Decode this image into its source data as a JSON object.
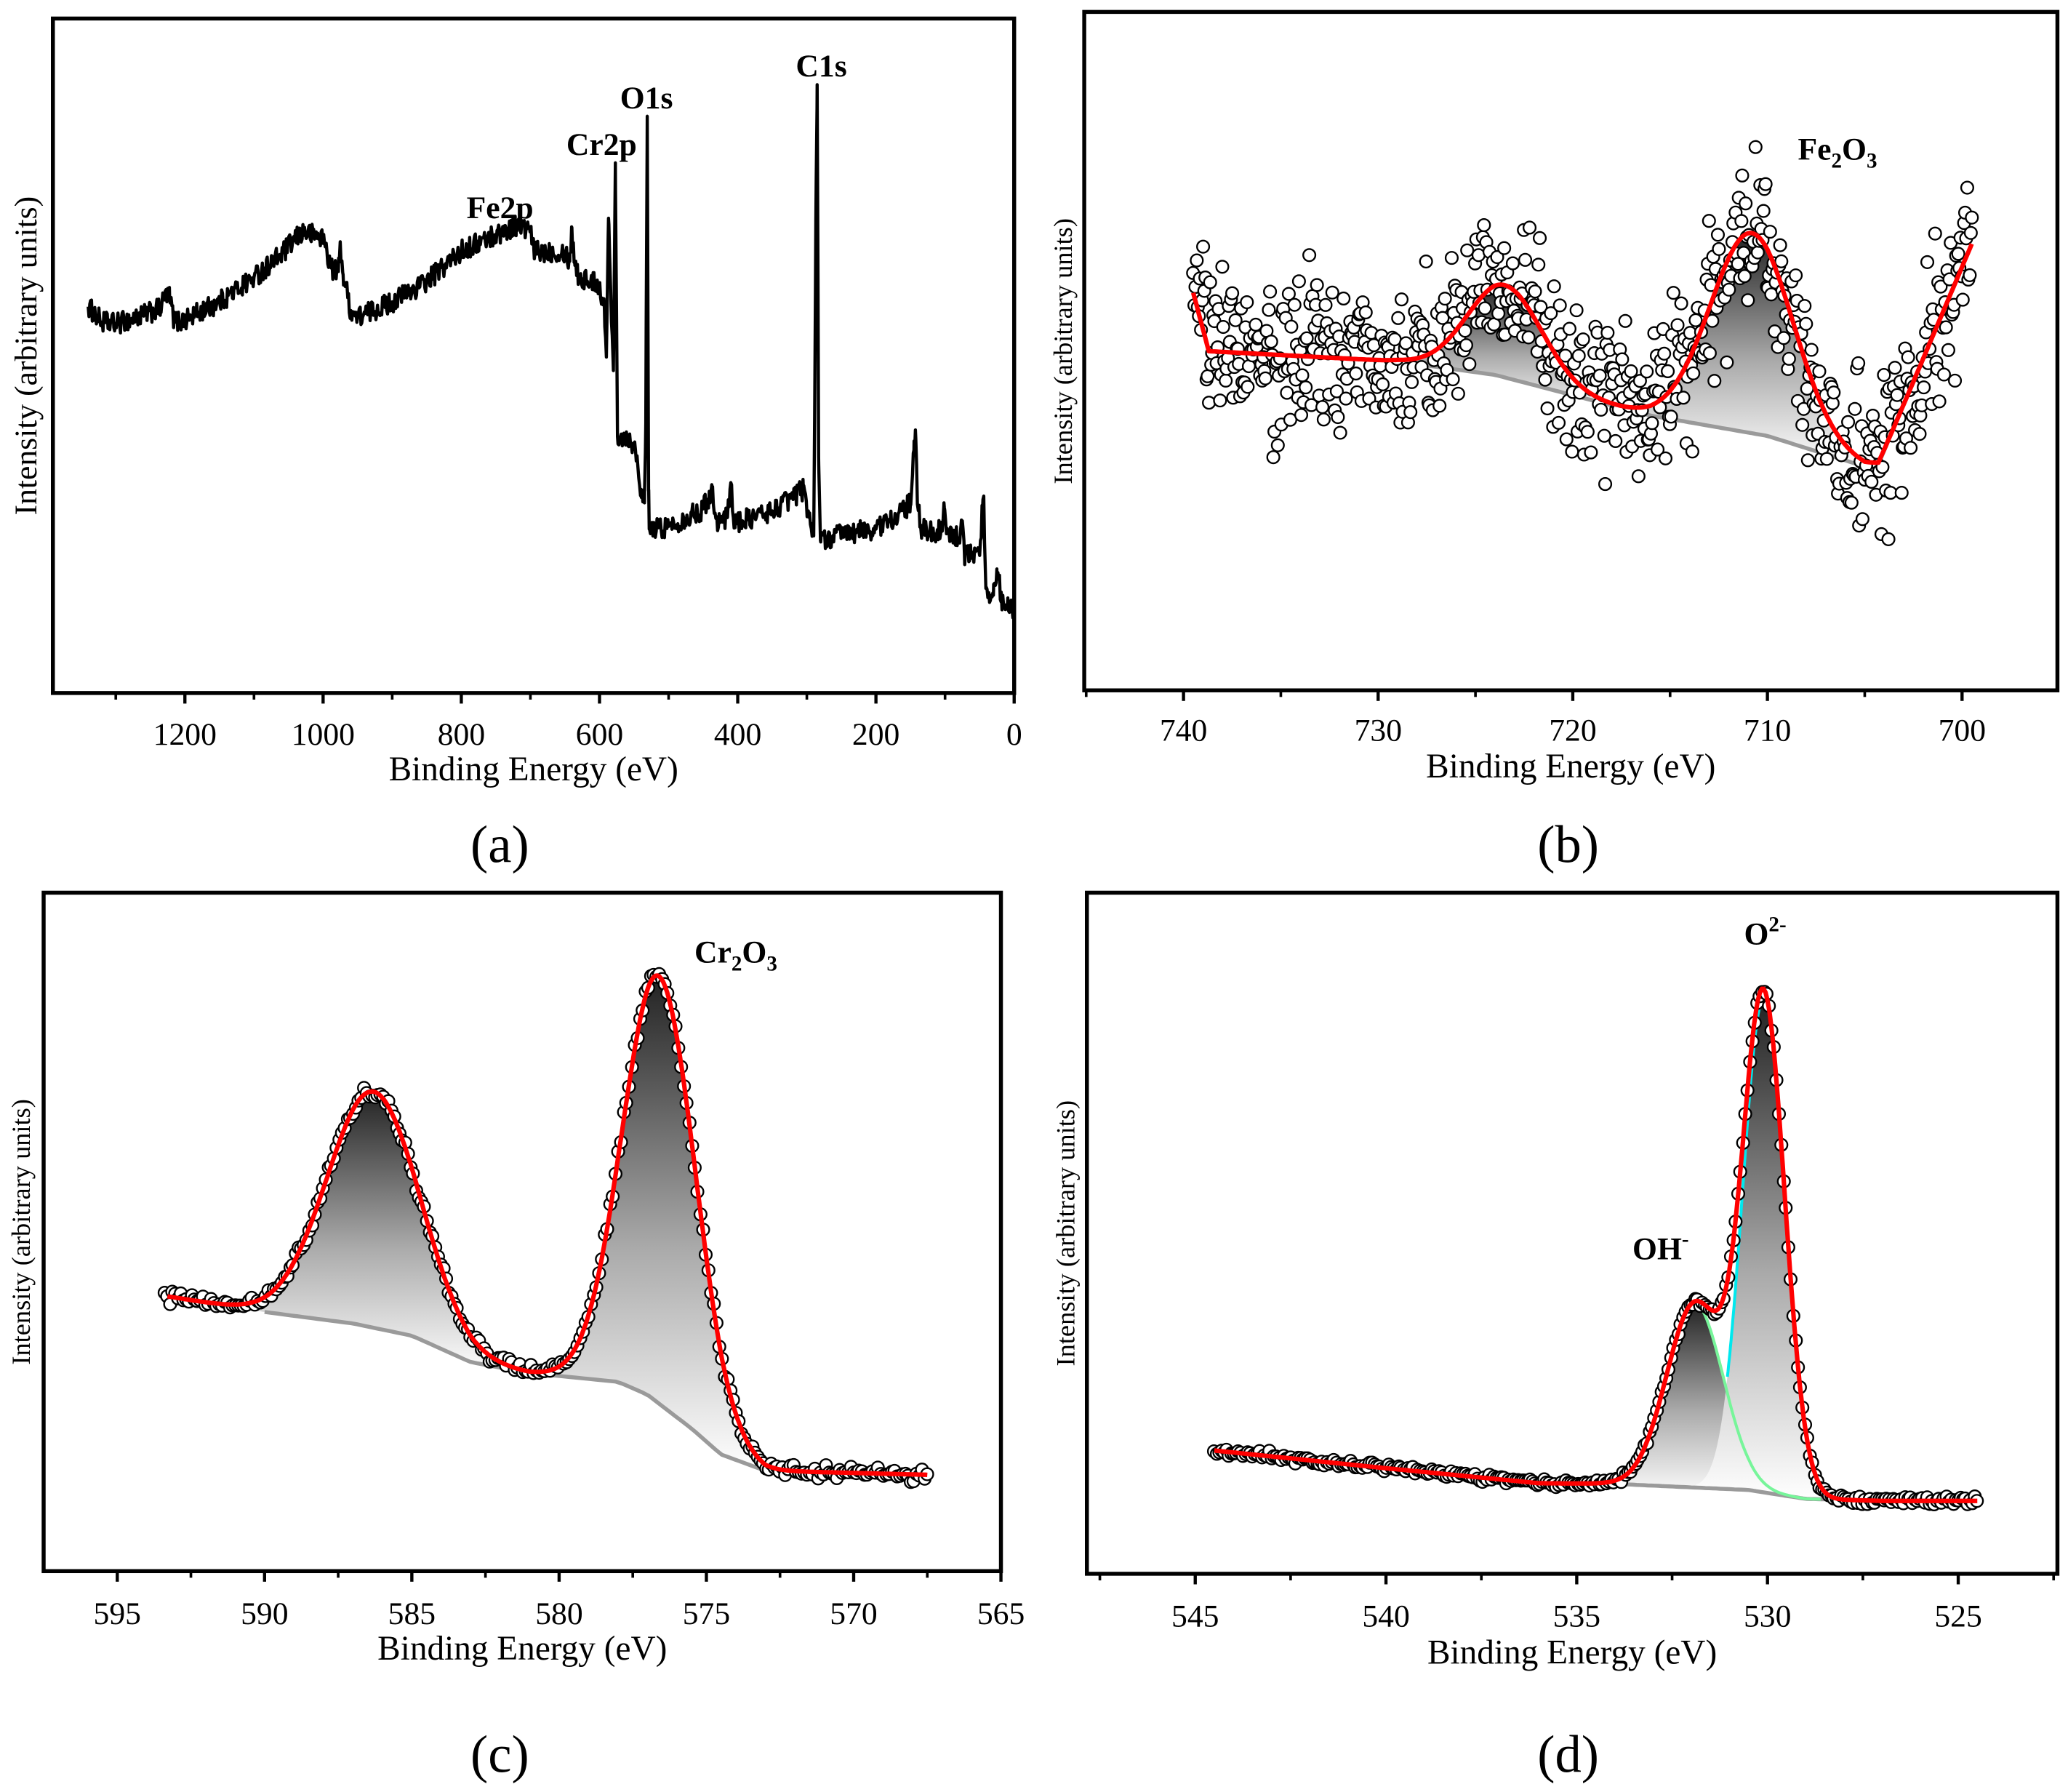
{
  "chart_data": [
    {
      "id": "a",
      "type": "line",
      "panel_label": "(a)",
      "xlabel": "Binding Energy (eV)",
      "ylabel": "Intensity (arbitrary units)",
      "xlim": [
        1391,
        0
      ],
      "ylim": [
        0,
        100
      ],
      "xticks": [
        1200,
        1000,
        800,
        600,
        400,
        200,
        0
      ],
      "xtick_labels": [
        "1200",
        "1000",
        "800",
        "600",
        "400",
        "200",
        "0"
      ],
      "minor_xticks": [
        1300,
        1100,
        900,
        700,
        500,
        300,
        100
      ],
      "series": [
        {
          "name": "survey",
          "color": "#000000",
          "noise": 1.0,
          "points": [
            [
              1340,
              57.3
            ],
            [
              1320,
              55
            ],
            [
              1300,
              54.7
            ],
            [
              1260,
              56
            ],
            [
              1235,
              57
            ],
            [
              1228,
              59
            ],
            [
              1222,
              58.6
            ],
            [
              1215,
              55
            ],
            [
              1200,
              55.3
            ],
            [
              1150,
              58
            ],
            [
              1100,
              61.6
            ],
            [
              1060,
              65
            ],
            [
              1030,
              68.4
            ],
            [
              1000,
              67.5
            ],
            [
              988,
              63
            ],
            [
              978,
              62.5
            ],
            [
              975,
              66.5
            ],
            [
              971,
              62
            ],
            [
              960,
              56.7
            ],
            [
              950,
              55.7
            ],
            [
              900,
              58
            ],
            [
              850,
              61
            ],
            [
              800,
              65.5
            ],
            [
              760,
              67.5
            ],
            [
              720,
              69.4
            ],
            [
              700,
              68.4
            ],
            [
              695,
              65.5
            ],
            [
              650,
              65.5
            ],
            [
              643,
              64
            ],
            [
              640,
              69
            ],
            [
              636,
              64
            ],
            [
              630,
              61.6
            ],
            [
              600,
              60.6
            ],
            [
              593,
              57
            ],
            [
              590,
              49.8
            ],
            [
              587,
              70.4
            ],
            [
              584,
              60
            ],
            [
              580,
              47.8
            ],
            [
              577,
              78.6
            ],
            [
              574,
              38
            ],
            [
              560,
              38
            ],
            [
              552,
              37
            ],
            [
              548,
              36
            ],
            [
              540,
              30.2
            ],
            [
              535,
              28.2
            ],
            [
              533,
              40
            ],
            [
              531,
              85.5
            ],
            [
              529,
              30
            ],
            [
              528,
              24.3
            ],
            [
              500,
              24.7
            ],
            [
              450,
              27.3
            ],
            [
              437,
              30.2
            ],
            [
              430,
              25.5
            ],
            [
              415,
              26
            ],
            [
              410,
              31.2
            ],
            [
              405,
              25.5
            ],
            [
              400,
              25.3
            ],
            [
              350,
              27
            ],
            [
              305,
              30.2
            ],
            [
              298,
              27
            ],
            [
              290,
              23.3
            ],
            [
              287,
              70
            ],
            [
              285,
              90.2
            ],
            [
              283,
              35
            ],
            [
              280,
              22.4
            ],
            [
              250,
              23.6
            ],
            [
              200,
              24.3
            ],
            [
              160,
              27
            ],
            [
              150,
              28.2
            ],
            [
              145,
              36
            ],
            [
              143,
              39
            ],
            [
              140,
              28
            ],
            [
              135,
              24.4
            ],
            [
              120,
              24
            ],
            [
              104,
              24
            ],
            [
              101,
              27.5
            ],
            [
              98,
              23.6
            ],
            [
              80,
              23
            ],
            [
              75,
              25.5
            ],
            [
              72,
              20.5
            ],
            [
              50,
              20.4
            ],
            [
              46,
              27
            ],
            [
              44,
              29.2
            ],
            [
              41,
              15.5
            ],
            [
              30,
              14.5
            ],
            [
              25,
              18.4
            ],
            [
              22,
              17
            ],
            [
              19,
              13.5
            ],
            [
              10,
              13
            ],
            [
              5,
              13.5
            ],
            [
              1,
              12.5
            ]
          ]
        }
      ],
      "annotations": [
        {
          "x": 744,
          "y": 70.4,
          "parts": [
            [
              "Fe2p",
              "n"
            ]
          ]
        },
        {
          "x": 597,
          "y": 79.8,
          "parts": [
            [
              "Cr2p",
              "n"
            ]
          ]
        },
        {
          "x": 532,
          "y": 86.7,
          "parts": [
            [
              "O1s",
              "n"
            ]
          ]
        },
        {
          "x": 279,
          "y": 91.4,
          "parts": [
            [
              "C1s",
              "n"
            ]
          ]
        }
      ]
    },
    {
      "id": "b",
      "type": "scatter",
      "panel_label": "(b)",
      "xlabel": "Binding Energy (eV)",
      "ylabel": "Intensity (arbitrary units)",
      "xlim": [
        745.1,
        695.1
      ],
      "ylim": [
        0,
        100
      ],
      "xticks": [
        740,
        730,
        720,
        710,
        700
      ],
      "xtick_labels": [
        "740",
        "730",
        "720",
        "710",
        "700"
      ],
      "minor_xticks": [
        745,
        735,
        725,
        715,
        705
      ],
      "background": [
        [
          739.5,
          58.6
        ],
        [
          738.7,
          50
        ],
        [
          729,
          48.5
        ],
        [
          724,
          46.5
        ],
        [
          716,
          40.5
        ],
        [
          710,
          37.5
        ],
        [
          705,
          33
        ],
        [
          704.3,
          33.3
        ],
        [
          699.5,
          65.8
        ]
      ],
      "background_line_range": [
        728,
        703.5
      ],
      "background_color": "#9a9a9a",
      "fit_color": "#ff0000",
      "fit_range": [
        739.5,
        699.5
      ],
      "components": [
        {
          "name": "Fe2p3/2 satellite",
          "center": 723.5,
          "height": 13.6,
          "fwhm": 4.5
        },
        {
          "name": "Fe2O3",
          "center": 710.8,
          "height": 29.5,
          "fwhm": 5.0
        }
      ],
      "measured": {
        "range": [
          739.5,
          699.5
        ],
        "count": 700,
        "scatter": 17
      },
      "annotations": [
        {
          "x": 706.4,
          "y": 78.2,
          "parts": [
            [
              "Fe",
              "n"
            ],
            [
              "2",
              "sub"
            ],
            [
              "O",
              "n"
            ],
            [
              "3",
              "sub"
            ]
          ]
        }
      ]
    },
    {
      "id": "c",
      "type": "scatter",
      "panel_label": "(c)",
      "xlabel": "Binding Energy (eV)",
      "ylabel": "Intensity (arbitrary units)",
      "xlim": [
        597.5,
        565
      ],
      "ylim": [
        0,
        100
      ],
      "xticks": [
        595,
        590,
        585,
        580,
        575,
        570,
        565
      ],
      "xtick_labels": [
        "595",
        "590",
        "585",
        "580",
        "575",
        "570",
        "565"
      ],
      "minor_xticks": [
        592.5,
        587.5,
        582.5,
        577.5,
        572.5,
        567.5
      ],
      "background": [
        [
          593.3,
          40.5
        ],
        [
          590,
          38.2
        ],
        [
          587,
          36.5
        ],
        [
          585,
          34.7
        ],
        [
          583,
          30.8
        ],
        [
          581,
          29.2
        ],
        [
          578,
          27.9
        ],
        [
          577,
          26
        ],
        [
          575.5,
          21
        ],
        [
          574.5,
          17.2
        ],
        [
          573,
          14.8
        ],
        [
          567.5,
          14.2
        ]
      ],
      "background_line_range": [
        590,
        567.5
      ],
      "background_color": "#9a9a9a",
      "fit_color": "#ff0000",
      "fit_range": [
        593.3,
        567.5
      ],
      "components": [
        {
          "name": "Cr2p1/2",
          "center": 586.3,
          "height": 34.8,
          "fwhm": 3.7
        },
        {
          "name": "Cr2p3/2",
          "center": 576.6,
          "height": 63.0,
          "fwhm": 2.9
        }
      ],
      "measured": {
        "range": [
          593.4,
          567.5
        ],
        "count": 280,
        "scatter": 1.3
      },
      "annotations": [
        {
          "x": 574.0,
          "y": 89.7,
          "parts": [
            [
              "Cr",
              "n"
            ],
            [
              "2",
              "sub"
            ],
            [
              "O",
              "n"
            ],
            [
              "3",
              "sub"
            ]
          ]
        }
      ]
    },
    {
      "id": "d",
      "type": "scatter",
      "panel_label": "(d)",
      "xlabel": "Binding Energy (eV)",
      "ylabel": "Intensity (arbitrary units)",
      "xlim": [
        547.84,
        522.4
      ],
      "ylim": [
        0,
        100
      ],
      "xticks": [
        545,
        540,
        535,
        530,
        525
      ],
      "xtick_labels": [
        "545",
        "540",
        "535",
        "530",
        "525"
      ],
      "minor_xticks": [
        547.5,
        542.5,
        537.5,
        532.5,
        527.5,
        522.5
      ],
      "background": [
        [
          544.5,
          18.1
        ],
        [
          540,
          15.5
        ],
        [
          536,
          13.3
        ],
        [
          534,
          13.2
        ],
        [
          530.5,
          12.3
        ],
        [
          529,
          11
        ],
        [
          527,
          10.7
        ],
        [
          524.5,
          10.7
        ]
      ],
      "background_line_range": [
        534,
        524.5
      ],
      "background_color": "#9a9a9a",
      "fit_color": "#ff0000",
      "fit_range": [
        544.5,
        524.5
      ],
      "components": [
        {
          "name": "OH-",
          "center": 531.9,
          "height": 27.0,
          "fwhm": 1.75,
          "line_color": "#77f59a",
          "line_range": [
            531.7,
            528.6
          ]
        },
        {
          "name": "O2-",
          "center": 530.1,
          "height": 72.5,
          "fwhm": 1.3,
          "line_color": "#00e8ee",
          "line_range": [
            531.05,
            530.1
          ]
        }
      ],
      "measured": {
        "range": [
          544.5,
          524.5
        ],
        "count": 320,
        "scatter": 0.9
      },
      "annotations": [
        {
          "x": 530.06,
          "y": 92.4,
          "parts": [
            [
              "O",
              "n"
            ],
            [
              "2-",
              "sup"
            ]
          ]
        },
        {
          "x": 532.8,
          "y": 46.2,
          "parts": [
            [
              "OH",
              "n"
            ],
            [
              "-",
              "sup"
            ]
          ]
        }
      ]
    }
  ]
}
